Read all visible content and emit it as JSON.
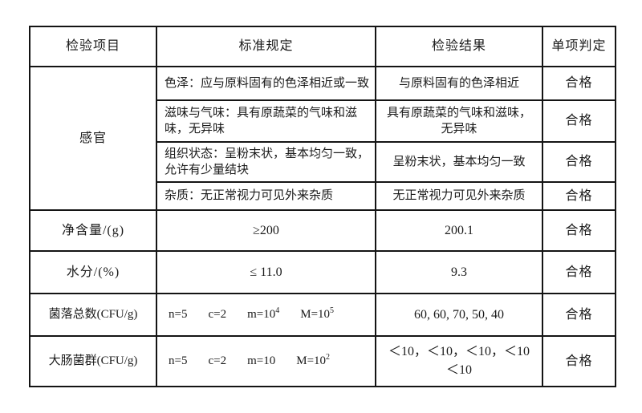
{
  "document": {
    "background": "#ffffff",
    "ink": "#1b1b1b",
    "border_color": "#141414"
  },
  "table": {
    "headers": [
      "检验项目",
      "标准规定",
      "检验结果",
      "单项判定"
    ],
    "sensory": {
      "label": "感官",
      "sub_rows": [
        {
          "standard": "色泽：应与原料固有的色泽相近或一致",
          "result": "与原料固有的色泽相近",
          "verdict": "合格"
        },
        {
          "standard": "滋味与气味：具有原蔬菜的气味和滋味，无异味",
          "result": "具有原蔬菜的气味和滋味，无异味",
          "verdict": "合格"
        },
        {
          "standard": "组织状态：呈粉末状，基本均匀一致，允许有少量结块",
          "result": "呈粉末状，基本均匀一致",
          "verdict": "合格"
        },
        {
          "standard": "杂质：无正常视力可见外来杂质",
          "result": "无正常视力可见外来杂质",
          "verdict": "合格"
        }
      ]
    },
    "rows": [
      {
        "item": "净含量/(g)",
        "standard": "≥200",
        "result": "200.1",
        "verdict": "合格"
      },
      {
        "item": "水分/(%)",
        "standard": "≤ 11.0",
        "result": "9.3",
        "verdict": "合格"
      },
      {
        "item": "菌落总数(CFU/g)",
        "standard_parts": [
          {
            "text": "n=5",
            "sup": ""
          },
          {
            "text": "c=2",
            "sup": ""
          },
          {
            "text": "m=10",
            "sup": "4"
          },
          {
            "text": "M=10",
            "sup": "5"
          }
        ],
        "result": "60, 60, 70, 50, 40",
        "verdict": "合格"
      },
      {
        "item": "大肠菌群(CFU/g)",
        "standard_parts": [
          {
            "text": "n=5",
            "sup": ""
          },
          {
            "text": "c=2",
            "sup": ""
          },
          {
            "text": "m=10",
            "sup": ""
          },
          {
            "text": "M=10",
            "sup": "2"
          }
        ],
        "result_line1": "＜10，＜10，＜10，＜10",
        "result_line2": "＜10",
        "verdict": "合格"
      }
    ]
  }
}
